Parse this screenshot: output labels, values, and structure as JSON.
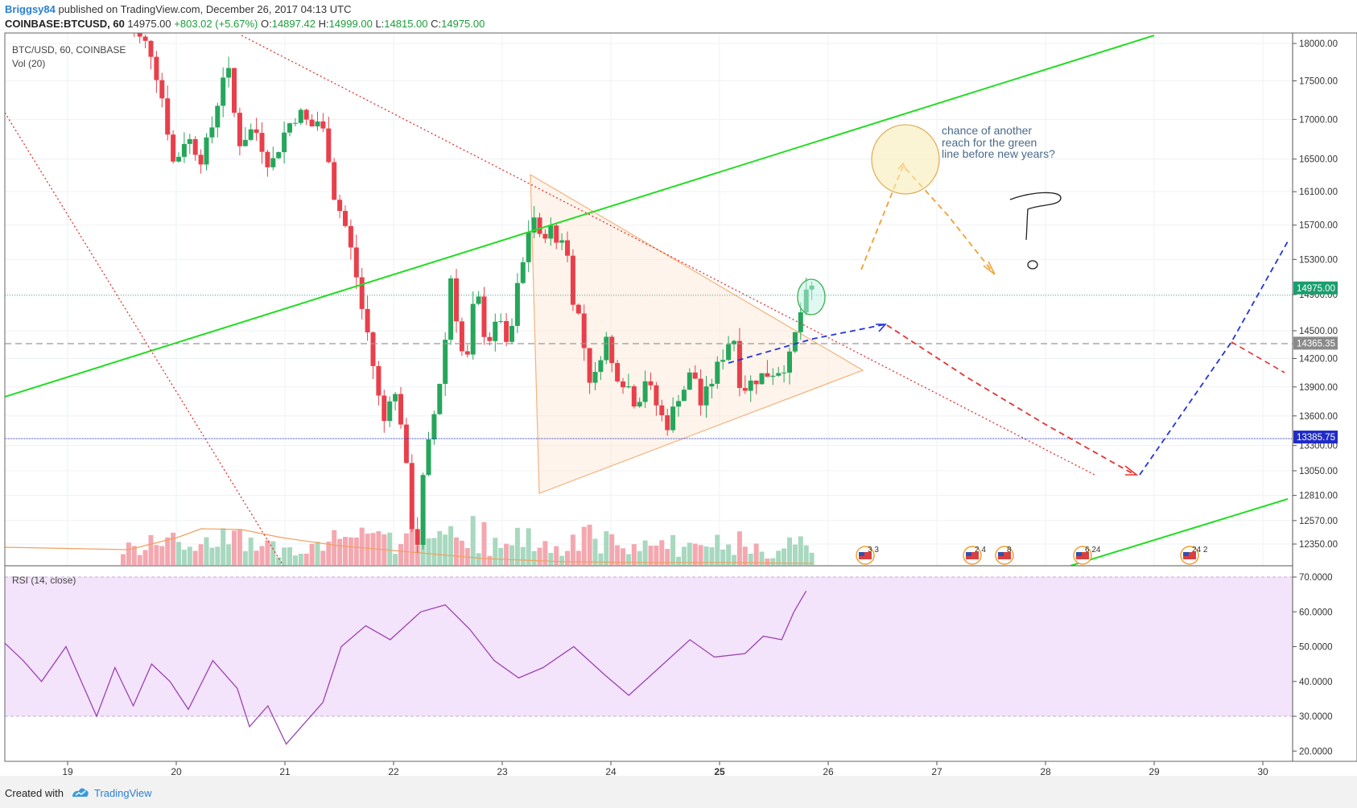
{
  "header": {
    "author": "Briggsy84",
    "published_text": "published on TradingView.com, December 26, 2017 04:13 UTC",
    "symbol": "COINBASE:BTCUSD, 60",
    "last": "14975.00",
    "change": "+803.02 (+5.67%)",
    "o_label": "O:",
    "o": "14897.42",
    "h_label": "H:",
    "h": "14999.00",
    "l_label": "L:",
    "l": "14815.00",
    "c_label": "C:",
    "c": "14975.00"
  },
  "chart_legend": {
    "symbol": "BTC/USD, 60, COINBASE",
    "volume": "Vol (20)"
  },
  "rsi_legend": "RSI (14, close)",
  "annotation": {
    "lines": [
      "chance of another",
      "reach for the green",
      "line before new years?"
    ],
    "question_mark": "?"
  },
  "price_badges": [
    {
      "label": "14975.00",
      "color": "#1a9e6e"
    },
    {
      "label": "14365.35",
      "color": "#8a8a8a"
    },
    {
      "label": "13385.75",
      "color": "#1f2bc7"
    }
  ],
  "event_labels": [
    "3 3",
    "2 4",
    "8",
    "6 24",
    "24 2"
  ],
  "footer": {
    "created_with": "Created with",
    "brand": "TradingView"
  },
  "chart_data": {
    "type": "candlestick",
    "title": "BTC/USD, 60, COINBASE",
    "x_ticks": [
      "19",
      "20",
      "21",
      "22",
      "23",
      "24",
      "25",
      "26",
      "27",
      "28",
      "29",
      "30"
    ],
    "price_ticks": [
      18000,
      17500,
      17000,
      16500,
      16100,
      15700,
      15300,
      14900,
      14500,
      14200,
      13900,
      13600,
      13300,
      13050,
      12810,
      12570,
      12350
    ],
    "price_range": [
      12150,
      18100
    ],
    "price_scale": "log",
    "last_price": 14975.0,
    "levels": [
      {
        "name": "last",
        "value": 14975.0
      },
      {
        "name": "dashed",
        "value": 14365.35
      },
      {
        "name": "support",
        "value": 13385.75
      }
    ],
    "volume_series": "Vol (20)",
    "rsi": {
      "name": "RSI (14, close)",
      "ticks": [
        "70.0000",
        "60.0000",
        "50.0000",
        "40.0000",
        "30.0000",
        "20.0000"
      ],
      "range": [
        17,
        72
      ],
      "overbought": 70,
      "oversold": 30,
      "band_color": "#f3e3fb",
      "line_color": "#9a44b0",
      "last": 66,
      "shape": [
        [
          0.0,
          51
        ],
        [
          0.3,
          46
        ],
        [
          0.6,
          40
        ],
        [
          1.0,
          50
        ],
        [
          1.3,
          38
        ],
        [
          1.5,
          30
        ],
        [
          1.8,
          44
        ],
        [
          2.1,
          33
        ],
        [
          2.4,
          45
        ],
        [
          2.7,
          40
        ],
        [
          3.0,
          32
        ],
        [
          3.4,
          46
        ],
        [
          3.8,
          38
        ],
        [
          4.0,
          27
        ],
        [
          4.3,
          33
        ],
        [
          4.6,
          22
        ],
        [
          4.9,
          28
        ],
        [
          5.2,
          34
        ],
        [
          5.5,
          50
        ],
        [
          5.9,
          56
        ],
        [
          6.3,
          52
        ],
        [
          6.8,
          60
        ],
        [
          7.2,
          62
        ],
        [
          7.6,
          55
        ],
        [
          8.0,
          46
        ],
        [
          8.4,
          41
        ],
        [
          8.8,
          44
        ],
        [
          9.3,
          50
        ],
        [
          9.8,
          42
        ],
        [
          10.2,
          36
        ],
        [
          10.7,
          44
        ],
        [
          11.2,
          52
        ],
        [
          11.6,
          47
        ],
        [
          12.1,
          48
        ],
        [
          12.4,
          53
        ],
        [
          12.7,
          52
        ],
        [
          12.9,
          60
        ],
        [
          13.1,
          66
        ]
      ]
    },
    "colors": {
      "up": "#26a65b",
      "down": "#e8404b",
      "vol_up": "#a8d8bf",
      "vol_down": "#f3a8b0"
    }
  }
}
